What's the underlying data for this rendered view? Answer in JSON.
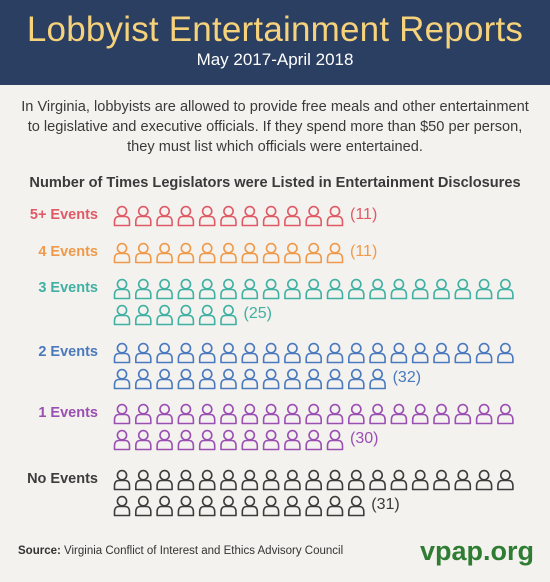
{
  "header": {
    "title": "Lobbyist Entertainment Reports",
    "subtitle": "May 2017-April 2018"
  },
  "intro_text": "In Virginia, lobbyists are allowed to provide free meals and other entertainment to legislative and executive officials. If they spend more than $50 per person, they must list which officials were entertained.",
  "source": {
    "label": "Source:",
    "text": "Virginia Conflict of Interest and Ethics Advisory Council"
  },
  "logo": "vpap.org",
  "chart_data": {
    "type": "pictograph",
    "title": "Number of Times Legislators were Listed in Entertainment Disclosures",
    "unit_icon": "person-icon",
    "icons_per_row": 19,
    "categories": [
      {
        "label": "5+ Events",
        "value": 11,
        "count_label": "(11)",
        "color": "#e05a66"
      },
      {
        "label": "4 Events",
        "value": 11,
        "count_label": "(11)",
        "color": "#ef9a4a"
      },
      {
        "label": "3 Events",
        "value": 25,
        "count_label": "(25)",
        "color": "#3fb0a2"
      },
      {
        "label": "2 Events",
        "value": 32,
        "count_label": "(32)",
        "color": "#4a79bd"
      },
      {
        "label": "1 Events",
        "value": 30,
        "count_label": "(30)",
        "color": "#9a4fb2"
      },
      {
        "label": "No Events",
        "value": 31,
        "count_label": "(31)",
        "color": "#3c3c3c"
      }
    ]
  }
}
